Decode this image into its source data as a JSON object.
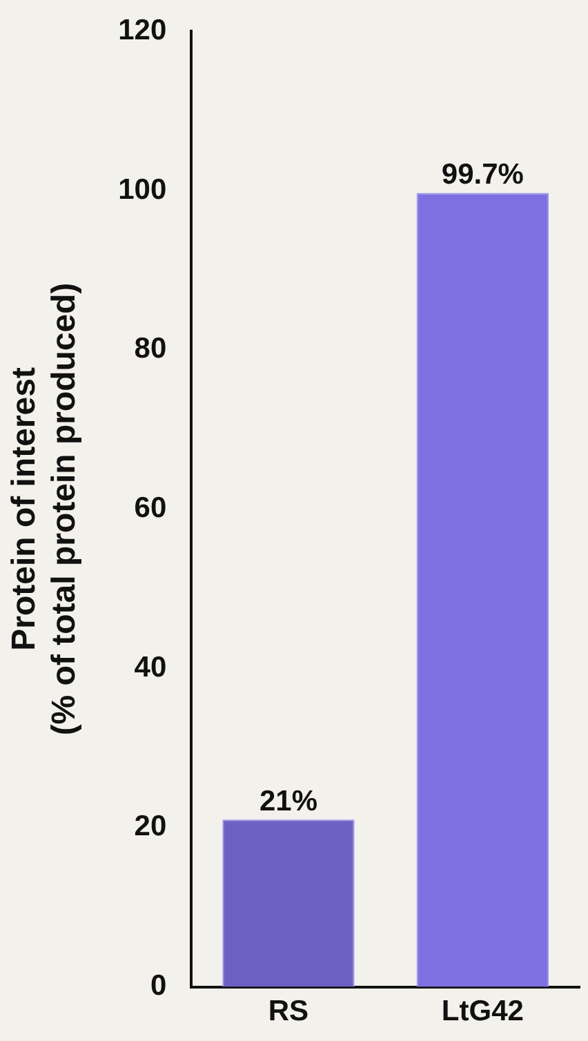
{
  "chart_data": {
    "type": "bar",
    "ylabel": "Protein of interest\n(% of total protein produced)",
    "categories": [
      "RS",
      "LtG42"
    ],
    "values": [
      21,
      99.7
    ],
    "colors": [
      "#6d60c2",
      "#7f70e2"
    ],
    "value_labels": [
      "21%",
      "99.7%"
    ],
    "ylim": [
      0,
      120
    ],
    "yticks": [
      0,
      20,
      40,
      60,
      80,
      100,
      120
    ],
    "grid": false,
    "legend": false
  }
}
